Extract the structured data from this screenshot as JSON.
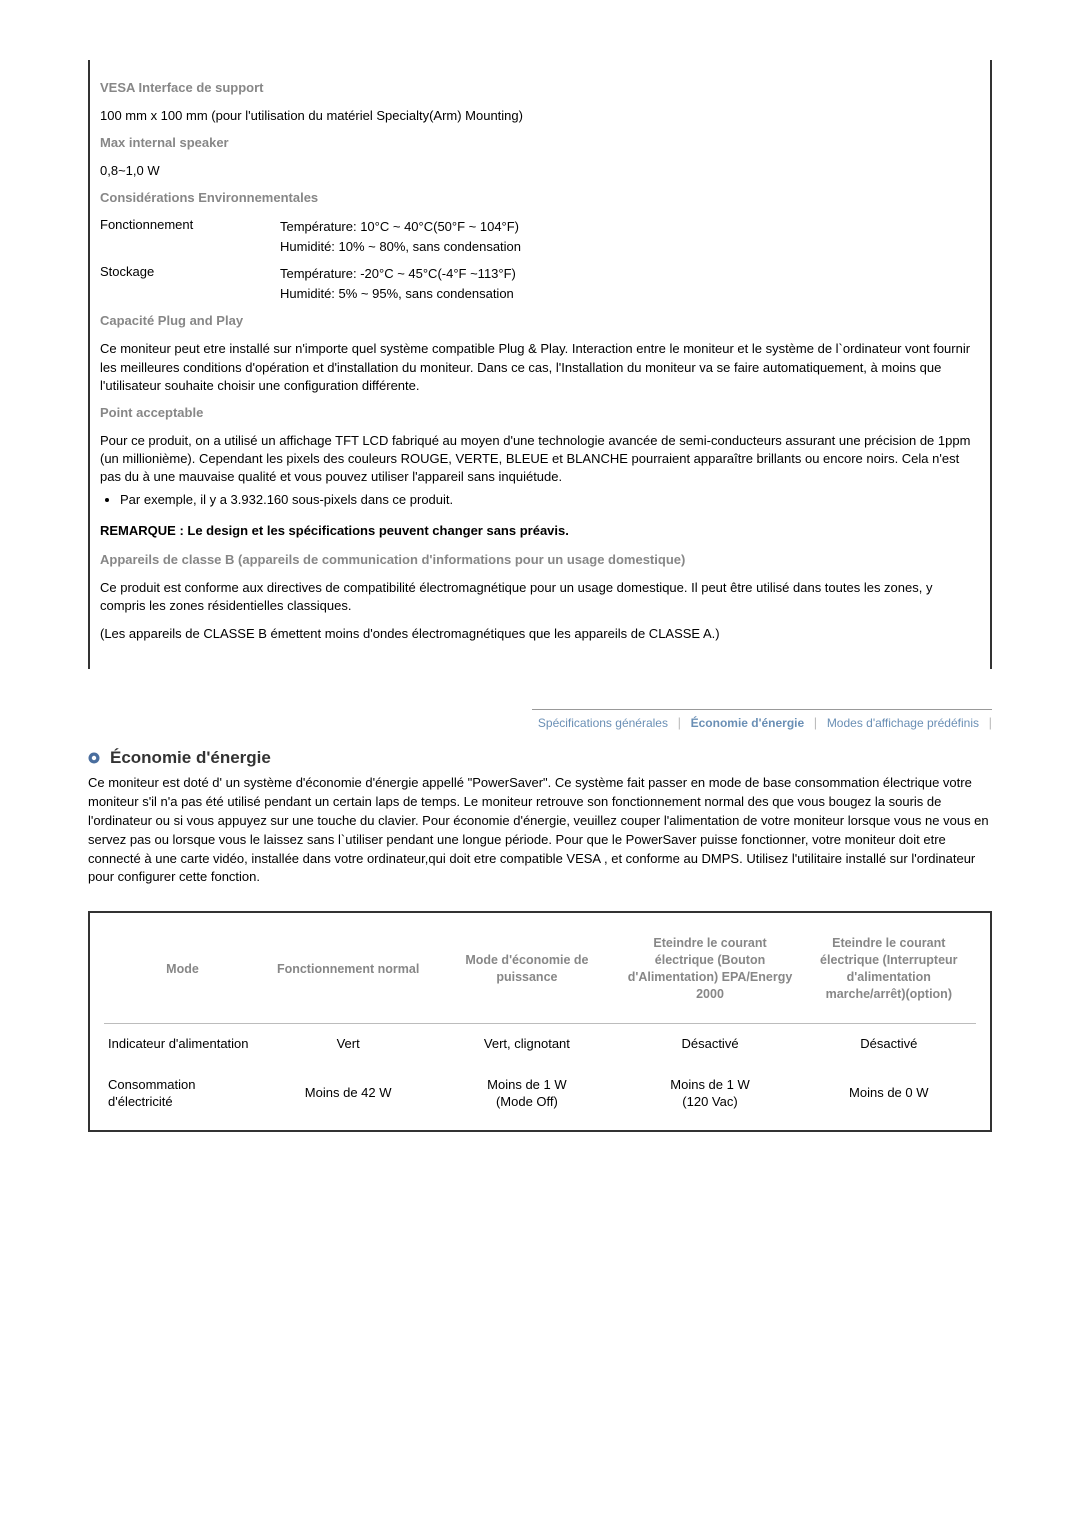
{
  "specs": {
    "vesa_heading": "VESA Interface de support",
    "vesa_text": "100 mm x 100 mm (pour l'utilisation du matériel Specialty(Arm) Mounting)",
    "speaker_heading": "Max internal speaker",
    "speaker_text": "0,8~1,0 W",
    "env_heading": "Considérations Environnementales",
    "operation_label": "Fonctionnement",
    "operation_val": "Température: 10°C ~ 40°C(50°F ~ 104°F)\nHumidité: 10% ~ 80%, sans condensation",
    "storage_label": "Stockage",
    "storage_val": "Température: -20°C ~ 45°C(-4°F ~113°F)\nHumidité: 5% ~ 95%, sans condensation",
    "pnp_heading": "Capacité Plug and Play",
    "pnp_text": "Ce moniteur peut etre installé sur n'importe quel système compatible Plug & Play. Interaction entre le moniteur et le système de l`ordinateur vont fournir les meilleures conditions d'opération et d'installation du moniteur. Dans ce cas, l'Installation du moniteur va se faire automatiquement, à moins que l'utilisateur souhaite choisir une configuration différente.",
    "point_heading": "Point acceptable",
    "point_text": "Pour ce produit, on a utilisé un affichage TFT LCD fabriqué au moyen d'une technologie avancée de semi-conducteurs assurant une précision de 1ppm (un millionième). Cependant les pixels des couleurs ROUGE, VERTE, BLEUE et BLANCHE pourraient apparaître brillants ou encore noirs. Cela n'est pas du à une mauvaise qualité et vous pouvez utiliser l'appareil sans inquiétude.",
    "point_bullet": "Par exemple, il y a 3.932.160 sous-pixels dans ce produit.",
    "remark": "REMARQUE : Le design et les spécifications peuvent changer sans préavis.",
    "classb_heading": "Appareils de classe B (appareils de communication d'informations pour un usage domestique)",
    "classb_text": "Ce produit est conforme aux directives de compatibilité électromagnétique pour un usage domestique. Il peut être utilisé dans toutes les zones, y compris les zones résidentielles classiques.",
    "classb_note": "(Les appareils de CLASSE B émettent moins d'ondes électromagnétiques que les appareils de CLASSE A.)"
  },
  "tabs": {
    "general": "Spécifications générales",
    "energy": "Économie d'énergie",
    "preset": "Modes d'affichage prédéfinis"
  },
  "eco": {
    "title": "Économie d'énergie",
    "para": "Ce moniteur est doté d' un système d'économie d'énergie appellé \"PowerSaver\". Ce système fait passer en mode de base consommation électrique votre moniteur s'il n'a pas été utilisé pendant un certain laps de temps. Le moniteur retrouve son fonctionnement normal des que vous bougez la souris de l'ordinateur ou si vous appuyez sur une touche du clavier. Pour économie d'énergie, veuillez couper l'alimentation de votre moniteur lorsque vous ne vous en servez pas ou lorsque vous le laissez sans l`utiliser pendant une longue période. Pour que le PowerSaver puisse fonctionner, votre moniteur doit etre connecté à une carte vidéo, installée dans votre ordinateur,qui doit etre compatible VESA , et conforme au DMPS. Utilisez l'utilitaire installé sur l'ordinateur pour configurer cette fonction."
  },
  "table": {
    "colwidths": [
      "18%",
      "20%",
      "21%",
      "21%",
      "20%"
    ],
    "headers": {
      "c0": "Mode",
      "c1": "Fonctionnement normal",
      "c2": "Mode d'économie de puissance",
      "c3": "Eteindre le courant électrique (Bouton d'Alimentation) EPA/Energy 2000",
      "c4": "Eteindre le courant électrique (Interrupteur d'alimentation marche/arrêt)(option)"
    },
    "rows": [
      {
        "label": "Indicateur d'alimentation",
        "c1": "Vert",
        "c2": "Vert, clignotant",
        "c3": "Désactivé",
        "c4": "Désactivé"
      },
      {
        "label": "Consommation d'électricité",
        "c1": "Moins de 42 W",
        "c2": "Moins de 1 W\n(Mode Off)",
        "c3": "Moins de 1 W\n(120 Vac)",
        "c4": "Moins de 0 W"
      }
    ]
  },
  "colors": {
    "heading_gray": "#878787",
    "tab_blue": "#6a8fb5",
    "border_dark": "#333333",
    "row_border": "#bcbcbc",
    "dot_outer": "#4a6e9e",
    "dot_inner": "#ffffff"
  }
}
